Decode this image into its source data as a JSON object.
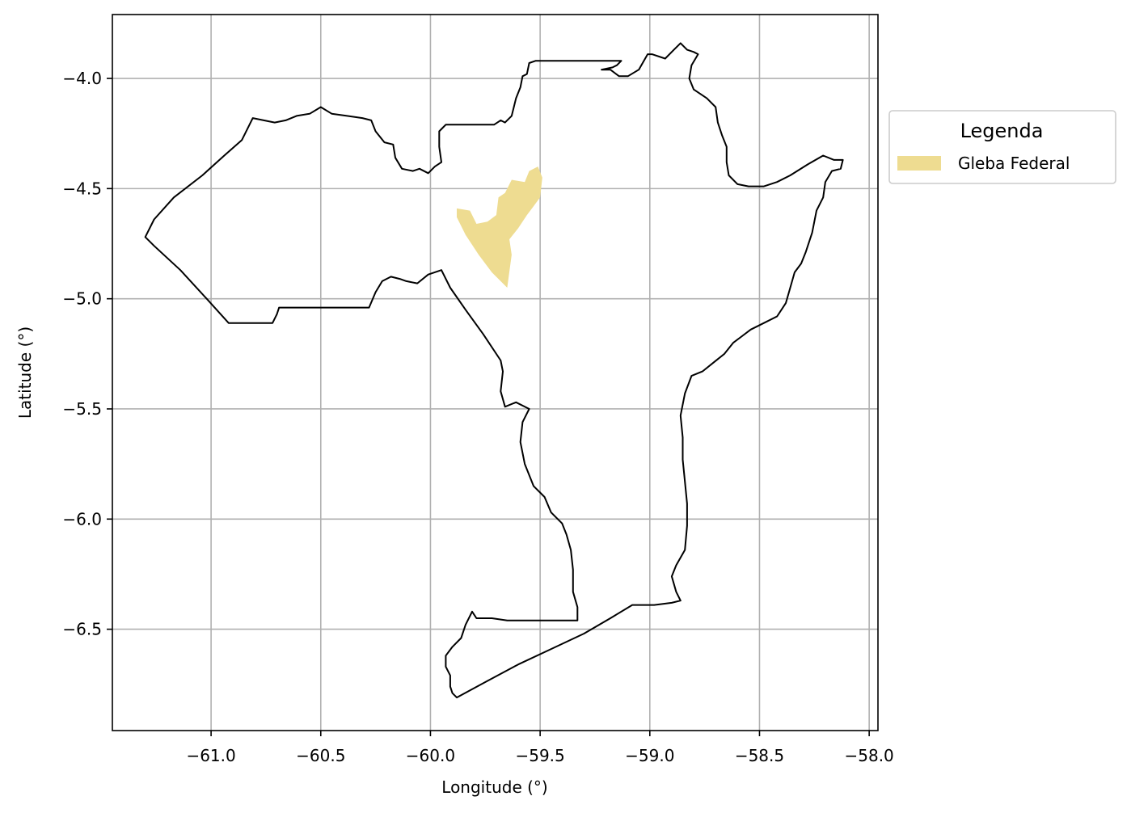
{
  "chart_data": {
    "type": "map",
    "xlabel": "Longitude (°)",
    "ylabel": "Latitude (°)",
    "xlim": [
      -61.45,
      -57.96
    ],
    "ylim": [
      -6.96,
      -3.71
    ],
    "x_ticks": [
      {
        "value": -61.0,
        "label": "−61.0"
      },
      {
        "value": -60.5,
        "label": "−60.5"
      },
      {
        "value": -60.0,
        "label": "−60.0"
      },
      {
        "value": -59.5,
        "label": "−59.5"
      },
      {
        "value": -59.0,
        "label": "−59.0"
      },
      {
        "value": -58.5,
        "label": "−58.5"
      },
      {
        "value": -58.0,
        "label": "−58.0"
      }
    ],
    "y_ticks": [
      {
        "value": -4.0,
        "label": "−4.0"
      },
      {
        "value": -4.5,
        "label": "−4.5"
      },
      {
        "value": -5.0,
        "label": "−5.0"
      },
      {
        "value": -5.5,
        "label": "−5.5"
      },
      {
        "value": -6.0,
        "label": "−6.0"
      },
      {
        "value": -6.5,
        "label": "−6.5"
      }
    ],
    "grid": true,
    "legend": {
      "title": "Legenda",
      "placement": "outside-right-top",
      "entries": [
        {
          "label": "Gleba Federal",
          "color": "#eedc91"
        }
      ]
    },
    "boundary": {
      "stroke": "#000000",
      "coords": [
        [
          -60.81,
          -4.18
        ],
        [
          -60.76,
          -4.19
        ],
        [
          -60.71,
          -4.2
        ],
        [
          -60.66,
          -4.19
        ],
        [
          -60.61,
          -4.17
        ],
        [
          -60.55,
          -4.16
        ],
        [
          -60.5,
          -4.13
        ],
        [
          -60.45,
          -4.16
        ],
        [
          -60.38,
          -4.17
        ],
        [
          -60.31,
          -4.18
        ],
        [
          -60.27,
          -4.19
        ],
        [
          -60.25,
          -4.24
        ],
        [
          -60.21,
          -4.29
        ],
        [
          -60.17,
          -4.3
        ],
        [
          -60.16,
          -4.36
        ],
        [
          -60.13,
          -4.41
        ],
        [
          -60.08,
          -4.42
        ],
        [
          -60.05,
          -4.41
        ],
        [
          -60.01,
          -4.43
        ],
        [
          -59.98,
          -4.4
        ],
        [
          -59.95,
          -4.38
        ],
        [
          -59.96,
          -4.31
        ],
        [
          -59.96,
          -4.24
        ],
        [
          -59.94,
          -4.22
        ],
        [
          -59.93,
          -4.21
        ],
        [
          -59.89,
          -4.21
        ],
        [
          -59.82,
          -4.21
        ],
        [
          -59.75,
          -4.21
        ],
        [
          -59.71,
          -4.21
        ],
        [
          -59.68,
          -4.19
        ],
        [
          -59.66,
          -4.2
        ],
        [
          -59.63,
          -4.17
        ],
        [
          -59.62,
          -4.13
        ],
        [
          -59.61,
          -4.09
        ],
        [
          -59.59,
          -4.04
        ],
        [
          -59.58,
          -3.99
        ],
        [
          -59.56,
          -3.98
        ],
        [
          -59.55,
          -3.93
        ],
        [
          -59.52,
          -3.92
        ],
        [
          -59.44,
          -3.92
        ],
        [
          -59.34,
          -3.92
        ],
        [
          -59.23,
          -3.92
        ],
        [
          -59.13,
          -3.92
        ],
        [
          -59.15,
          -3.94
        ],
        [
          -59.17,
          -3.95
        ],
        [
          -59.22,
          -3.96
        ],
        [
          -59.18,
          -3.96
        ],
        [
          -59.14,
          -3.99
        ],
        [
          -59.1,
          -3.99
        ],
        [
          -59.05,
          -3.96
        ],
        [
          -59.01,
          -3.89
        ],
        [
          -58.99,
          -3.89
        ],
        [
          -58.93,
          -3.91
        ],
        [
          -58.89,
          -3.87
        ],
        [
          -58.86,
          -3.84
        ],
        [
          -58.83,
          -3.87
        ],
        [
          -58.8,
          -3.88
        ],
        [
          -58.78,
          -3.89
        ],
        [
          -58.81,
          -3.94
        ],
        [
          -58.82,
          -4.0
        ],
        [
          -58.8,
          -4.05
        ],
        [
          -58.74,
          -4.09
        ],
        [
          -58.7,
          -4.13
        ],
        [
          -58.69,
          -4.2
        ],
        [
          -58.67,
          -4.26
        ],
        [
          -58.65,
          -4.31
        ],
        [
          -58.65,
          -4.38
        ],
        [
          -58.64,
          -4.44
        ],
        [
          -58.6,
          -4.48
        ],
        [
          -58.55,
          -4.49
        ],
        [
          -58.48,
          -4.49
        ],
        [
          -58.42,
          -4.47
        ],
        [
          -58.36,
          -4.44
        ],
        [
          -58.28,
          -4.39
        ],
        [
          -58.21,
          -4.35
        ],
        [
          -58.16,
          -4.37
        ],
        [
          -58.12,
          -4.37
        ],
        [
          -58.13,
          -4.41
        ],
        [
          -58.17,
          -4.42
        ],
        [
          -58.2,
          -4.47
        ],
        [
          -58.21,
          -4.54
        ],
        [
          -58.24,
          -4.6
        ],
        [
          -58.26,
          -4.7
        ],
        [
          -58.29,
          -4.79
        ],
        [
          -58.31,
          -4.84
        ],
        [
          -58.34,
          -4.88
        ],
        [
          -58.36,
          -4.95
        ],
        [
          -58.38,
          -5.02
        ],
        [
          -58.42,
          -5.08
        ],
        [
          -58.48,
          -5.11
        ],
        [
          -58.54,
          -5.14
        ],
        [
          -58.58,
          -5.17
        ],
        [
          -58.62,
          -5.2
        ],
        [
          -58.66,
          -5.25
        ],
        [
          -58.71,
          -5.29
        ],
        [
          -58.76,
          -5.33
        ],
        [
          -58.81,
          -5.35
        ],
        [
          -58.84,
          -5.43
        ],
        [
          -58.86,
          -5.53
        ],
        [
          -58.85,
          -5.63
        ],
        [
          -58.85,
          -5.73
        ],
        [
          -58.84,
          -5.83
        ],
        [
          -58.83,
          -5.93
        ],
        [
          -58.83,
          -6.03
        ],
        [
          -58.84,
          -6.14
        ],
        [
          -58.88,
          -6.21
        ],
        [
          -58.9,
          -6.26
        ],
        [
          -58.88,
          -6.33
        ],
        [
          -58.86,
          -6.37
        ],
        [
          -58.9,
          -6.38
        ],
        [
          -58.98,
          -6.39
        ],
        [
          -59.08,
          -6.39
        ],
        [
          -59.18,
          -6.45
        ],
        [
          -59.3,
          -6.52
        ],
        [
          -59.45,
          -6.59
        ],
        [
          -59.6,
          -6.66
        ],
        [
          -59.75,
          -6.74
        ],
        [
          -59.88,
          -6.81
        ],
        [
          -59.9,
          -6.79
        ],
        [
          -59.91,
          -6.76
        ],
        [
          -59.91,
          -6.71
        ],
        [
          -59.93,
          -6.67
        ],
        [
          -59.93,
          -6.62
        ],
        [
          -59.9,
          -6.58
        ],
        [
          -59.86,
          -6.54
        ],
        [
          -59.84,
          -6.48
        ],
        [
          -59.81,
          -6.42
        ],
        [
          -59.79,
          -6.45
        ],
        [
          -59.72,
          -6.45
        ],
        [
          -59.65,
          -6.46
        ],
        [
          -59.58,
          -6.46
        ],
        [
          -59.45,
          -6.46
        ],
        [
          -59.33,
          -6.46
        ],
        [
          -59.33,
          -6.4
        ],
        [
          -59.35,
          -6.33
        ],
        [
          -59.35,
          -6.23
        ],
        [
          -59.36,
          -6.14
        ],
        [
          -59.38,
          -6.07
        ],
        [
          -59.4,
          -6.02
        ],
        [
          -59.45,
          -5.97
        ],
        [
          -59.48,
          -5.9
        ],
        [
          -59.53,
          -5.85
        ],
        [
          -59.57,
          -5.75
        ],
        [
          -59.59,
          -5.65
        ],
        [
          -59.58,
          -5.56
        ],
        [
          -59.55,
          -5.5
        ],
        [
          -59.61,
          -5.47
        ],
        [
          -59.66,
          -5.49
        ],
        [
          -59.68,
          -5.42
        ],
        [
          -59.67,
          -5.33
        ],
        [
          -59.68,
          -5.28
        ],
        [
          -59.76,
          -5.16
        ],
        [
          -59.84,
          -5.05
        ],
        [
          -59.91,
          -4.95
        ],
        [
          -59.95,
          -4.87
        ],
        [
          -60.01,
          -4.89
        ],
        [
          -60.06,
          -4.93
        ],
        [
          -60.11,
          -4.92
        ],
        [
          -60.14,
          -4.91
        ],
        [
          -60.18,
          -4.9
        ],
        [
          -60.22,
          -4.92
        ],
        [
          -60.25,
          -4.97
        ],
        [
          -60.28,
          -5.04
        ],
        [
          -60.4,
          -5.04
        ],
        [
          -60.55,
          -5.04
        ],
        [
          -60.69,
          -5.04
        ],
        [
          -60.7,
          -5.07
        ],
        [
          -60.72,
          -5.11
        ],
        [
          -60.8,
          -5.11
        ],
        [
          -60.92,
          -5.11
        ],
        [
          -61.02,
          -5.0
        ],
        [
          -61.14,
          -4.87
        ],
        [
          -61.26,
          -4.76
        ],
        [
          -61.3,
          -4.72
        ],
        [
          -61.26,
          -4.64
        ],
        [
          -61.17,
          -4.54
        ],
        [
          -61.04,
          -4.44
        ],
        [
          -60.94,
          -4.35
        ],
        [
          -60.86,
          -4.28
        ],
        [
          -60.81,
          -4.18
        ]
      ]
    },
    "gleba_federal": {
      "name": "Gleba Federal",
      "fill": "#eedc91",
      "coords": [
        [
          -59.88,
          -4.59
        ],
        [
          -59.82,
          -4.6
        ],
        [
          -59.79,
          -4.66
        ],
        [
          -59.74,
          -4.65
        ],
        [
          -59.7,
          -4.62
        ],
        [
          -59.69,
          -4.54
        ],
        [
          -59.66,
          -4.52
        ],
        [
          -59.63,
          -4.46
        ],
        [
          -59.57,
          -4.47
        ],
        [
          -59.55,
          -4.42
        ],
        [
          -59.51,
          -4.4
        ],
        [
          -59.49,
          -4.45
        ],
        [
          -59.5,
          -4.54
        ],
        [
          -59.53,
          -4.58
        ],
        [
          -59.56,
          -4.62
        ],
        [
          -59.6,
          -4.68
        ],
        [
          -59.64,
          -4.73
        ],
        [
          -59.63,
          -4.8
        ],
        [
          -59.65,
          -4.95
        ],
        [
          -59.72,
          -4.88
        ],
        [
          -59.78,
          -4.8
        ],
        [
          -59.84,
          -4.71
        ],
        [
          -59.88,
          -4.63
        ],
        [
          -59.88,
          -4.59
        ]
      ]
    }
  }
}
